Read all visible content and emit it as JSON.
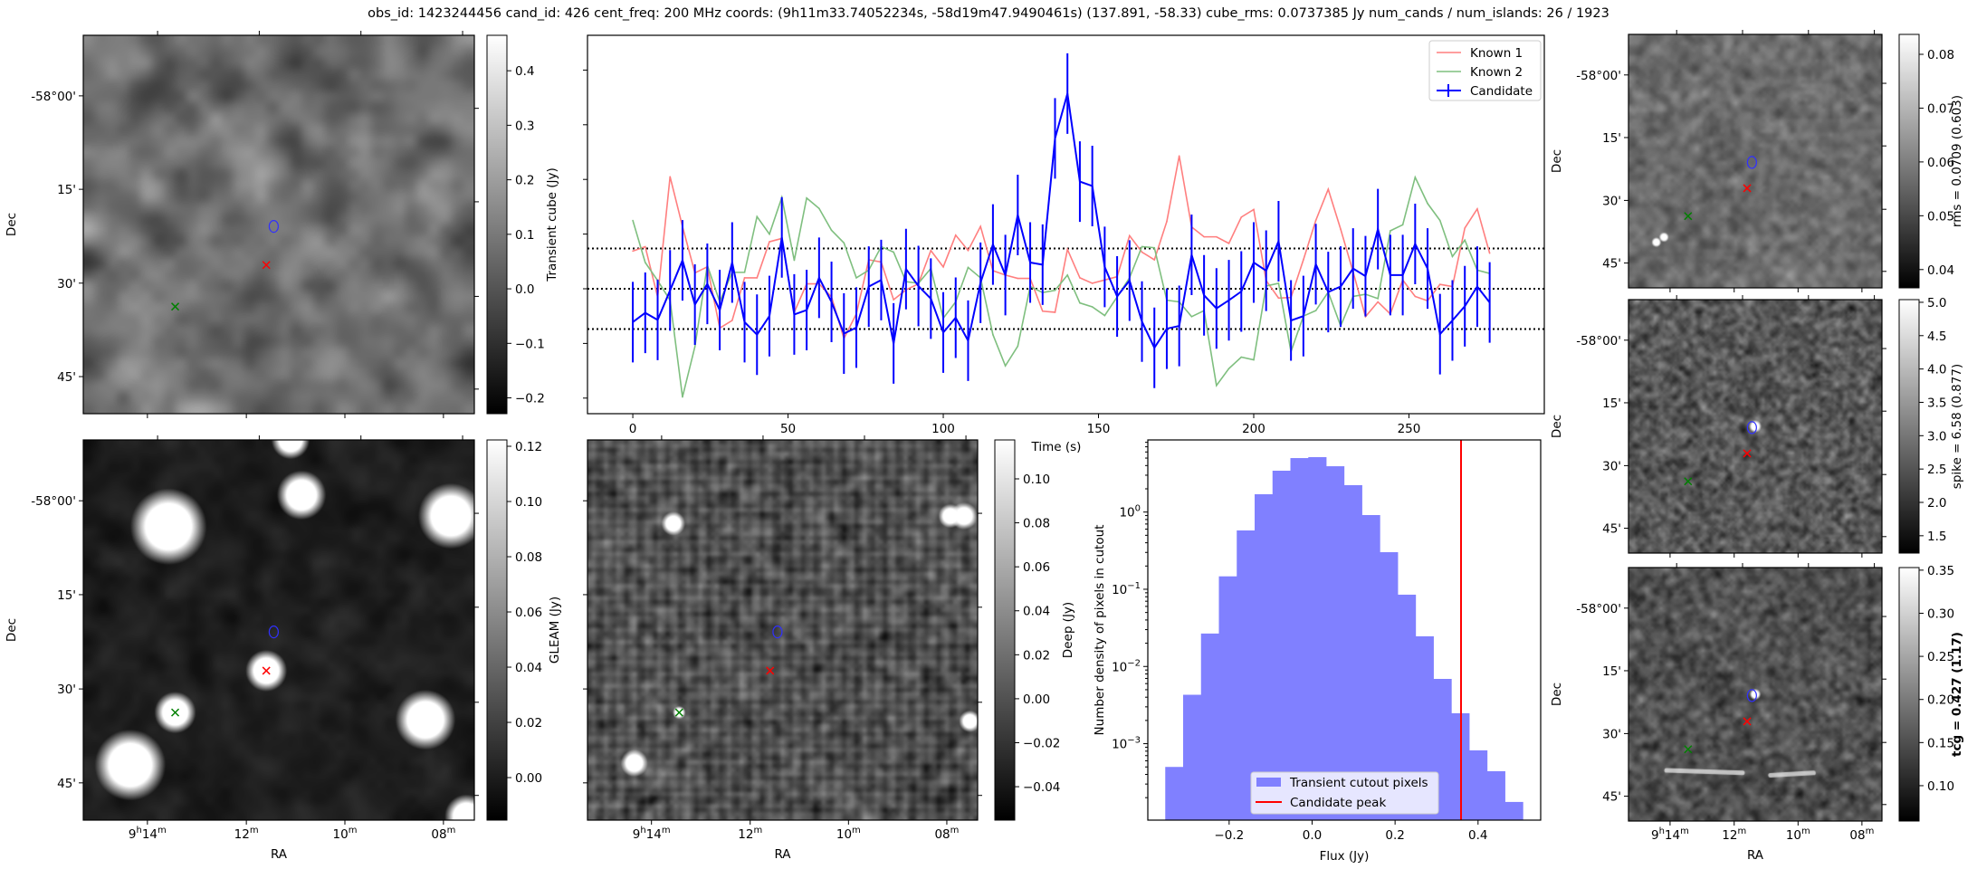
{
  "title": "obs_id: 1423244456 cand_id: 426 cent_freq: 200 MHz coords: (9h11m33.74052234s, -58d19m47.9490461s) (137.891, -58.33) cube_rms: 0.0737385 Jy num_cands / num_islands: 26 / 1923",
  "axis_labels": {
    "ra": "RA",
    "dec": "Dec"
  },
  "ra_ticks": [
    "9h14m",
    "12m",
    "10m",
    "08m"
  ],
  "dec_ticks": [
    "-58°00'",
    "15'",
    "30'",
    "45'"
  ],
  "colors": {
    "known1": "#ff7f7f",
    "known2": "#7fbf7f",
    "candidate": "#0000ff",
    "hist_fill": "#8080ff",
    "peak_line": "#ff0000",
    "contour": "#3030ff",
    "marker_candidate": "#ff0000",
    "marker_known": "#008000"
  },
  "panels": [
    {
      "id": "transient",
      "colorbar": {
        "label": "Transient cube (Jy)",
        "bold": false,
        "range": [
          -0.229,
          0.465
        ],
        "ticks": [
          "0.4",
          "0.3",
          "0.2",
          "0.1",
          "0.0",
          "−0.1",
          "−0.2"
        ]
      }
    },
    {
      "id": "gleam",
      "colorbar": {
        "label": "GLEAM (Jy)",
        "bold": false,
        "range": [
          -0.0154,
          0.1223
        ],
        "ticks": [
          "0.12",
          "0.10",
          "0.08",
          "0.06",
          "0.04",
          "0.02",
          "0.00"
        ]
      }
    },
    {
      "id": "deep",
      "colorbar": {
        "label": "Deep (Jy)",
        "bold": false,
        "range": [
          -0.0552,
          0.1177
        ],
        "ticks": [
          "0.10",
          "0.08",
          "0.06",
          "0.04",
          "0.02",
          "0.00",
          "−0.02",
          "−0.04"
        ]
      }
    },
    {
      "id": "rms",
      "colorbar": {
        "label": "rms = 0.0709 (0.603)",
        "bold": false,
        "range": [
          0.0366,
          0.0837
        ],
        "ticks": [
          "0.08",
          "0.07",
          "0.06",
          "0.05",
          "0.04"
        ]
      }
    },
    {
      "id": "spike",
      "colorbar": {
        "label": "spike = 6.58 (0.877)",
        "bold": false,
        "range": [
          1.24,
          5.04
        ],
        "ticks": [
          "5.0",
          "4.5",
          "4.0",
          "3.5",
          "3.0",
          "2.5",
          "2.0",
          "1.5"
        ]
      }
    },
    {
      "id": "tcg",
      "colorbar": {
        "label": "tcg = 0.427 (1.17)",
        "bold": true,
        "range": [
          0.059,
          0.353
        ],
        "ticks": [
          "0.35",
          "0.30",
          "0.25",
          "0.20",
          "0.15",
          "0.10"
        ]
      }
    }
  ],
  "chart_data": [
    {
      "type": "line",
      "title": "",
      "xlabel": "Time (s)",
      "ylabel": "",
      "xlim": [
        -14.6,
        293.6
      ],
      "ylim": [
        -0.2285,
        0.4636
      ],
      "xticks": [
        "0",
        "50",
        "100",
        "150",
        "200",
        "250"
      ],
      "yticks": [
        0.4,
        0.3,
        0.2,
        0.1,
        0.0,
        -0.1,
        -0.2
      ],
      "hlines": [
        0.0737385,
        0.0,
        -0.0737385
      ],
      "legend": "top-right",
      "x": [
        0,
        4,
        8,
        12,
        16,
        20,
        24,
        28,
        32,
        36,
        40,
        44,
        48,
        52,
        56,
        60,
        64,
        68,
        72,
        76,
        80,
        84,
        88,
        92,
        96,
        100,
        104,
        108,
        112,
        116,
        120,
        124,
        128,
        132,
        136,
        140,
        144,
        148,
        152,
        156,
        160,
        164,
        168,
        172,
        176,
        180,
        184,
        188,
        192,
        196,
        200,
        204,
        208,
        212,
        216,
        220,
        224,
        228,
        232,
        236,
        240,
        244,
        248,
        252,
        256,
        260,
        264,
        268,
        272,
        276
      ],
      "series": [
        {
          "name": "Known 1",
          "color_key": "known1",
          "values": [
            0.069,
            0.077,
            -0.015,
            0.205,
            0.114,
            0.029,
            0.04,
            -0.072,
            -0.058,
            0.02,
            0.02,
            0.086,
            0.092,
            -0.043,
            0.009,
            0.009,
            -0.015,
            -0.091,
            -0.046,
            0.053,
            0.049,
            -0.02,
            -0.002,
            0.009,
            0.07,
            0.04,
            0.098,
            0.07,
            0.114,
            0.033,
            0.025,
            0.019,
            0.019,
            -0.041,
            -0.043,
            0.072,
            0.02,
            0.01,
            0.016,
            0.022,
            0.097,
            0.067,
            0.053,
            0.123,
            0.243,
            0.113,
            0.095,
            0.095,
            0.083,
            0.131,
            0.145,
            0.015,
            -0.017,
            -0.016,
            0.053,
            0.125,
            0.182,
            0.109,
            0.031,
            -0.051,
            -0.024,
            -0.046,
            0.016,
            -0.014,
            -0.022,
            0.008,
            0.004,
            0.111,
            0.146,
            0.065
          ]
        },
        {
          "name": "Known 2",
          "color_key": "known2",
          "values": [
            0.125,
            0.048,
            0.015,
            -0.021,
            -0.198,
            -0.106,
            0.043,
            -0.024,
            0.03,
            0.03,
            0.132,
            0.1,
            0.167,
            0.052,
            0.166,
            0.147,
            0.107,
            0.084,
            0.02,
            0.034,
            0.077,
            0.067,
            0.013,
            0.01,
            0.037,
            -0.054,
            -0.024,
            0.039,
            0.02,
            -0.084,
            -0.141,
            -0.105,
            0.004,
            -0.007,
            -0.003,
            0.025,
            -0.026,
            -0.033,
            -0.049,
            -0.015,
            0.02,
            0.077,
            0.075,
            -0.021,
            -0.024,
            -0.051,
            -0.04,
            -0.177,
            -0.146,
            -0.125,
            -0.13,
            0.005,
            0.01,
            -0.115,
            -0.05,
            -0.04,
            -0.006,
            -0.068,
            -0.014,
            -0.01,
            -0.018,
            0.106,
            0.117,
            0.204,
            0.156,
            0.125,
            0.059,
            0.089,
            0.034,
            0.028
          ]
        },
        {
          "name": "Candidate",
          "color_key": "candidate",
          "yerr": 0.0737,
          "values": [
            -0.061,
            -0.044,
            -0.057,
            -0.003,
            0.052,
            -0.029,
            0.009,
            -0.039,
            0.048,
            -0.061,
            -0.084,
            -0.05,
            0.094,
            -0.047,
            -0.039,
            0.02,
            -0.024,
            -0.082,
            -0.071,
            0.004,
            0.016,
            -0.1,
            0.036,
            0.005,
            -0.018,
            -0.08,
            -0.053,
            -0.095,
            0.011,
            0.081,
            0.025,
            0.135,
            0.048,
            0.044,
            0.275,
            0.357,
            0.196,
            0.188,
            0.04,
            -0.014,
            0.015,
            -0.06,
            -0.108,
            -0.073,
            -0.068,
            0.062,
            -0.012,
            -0.036,
            -0.021,
            -0.005,
            0.048,
            0.033,
            0.087,
            -0.058,
            -0.05,
            0.045,
            -0.006,
            0.004,
            0.037,
            0.023,
            0.109,
            0.025,
            0.025,
            0.082,
            0.037,
            -0.083,
            -0.058,
            -0.032,
            0.004,
            -0.025
          ]
        }
      ]
    },
    {
      "type": "bar",
      "title": "",
      "xlabel": "Flux (Jy)",
      "ylabel": "Number density of pixels in cutout",
      "yscale": "log",
      "xlim": [
        -0.396,
        0.551
      ],
      "ylim_log10": [
        -3.99,
        0.934
      ],
      "xticks": [
        "−0.2",
        "0.0",
        "0.2",
        "0.4"
      ],
      "yticks": [
        "10^0",
        "10^-1",
        "10^-2",
        "10^-3"
      ],
      "legend": "lower-center",
      "bin_edges": [
        -0.354,
        -0.3109,
        -0.2678,
        -0.2247,
        -0.1816,
        -0.1385,
        -0.0954,
        -0.0523,
        -0.0092,
        0.0339,
        0.077,
        0.1201,
        0.1632,
        0.2063,
        0.2494,
        0.2925,
        0.3356,
        0.3787,
        0.4218,
        0.4649,
        0.508
      ],
      "density": [
        0.0005,
        0.0043,
        0.0267,
        0.147,
        0.578,
        1.7,
        3.43,
        5.0,
        5.14,
        3.92,
        2.23,
        0.914,
        0.302,
        0.0851,
        0.0246,
        0.0069,
        0.00248,
        0.00082,
        0.00044,
        0.000176
      ],
      "series_name": "Transient cutout pixels",
      "vline": {
        "name": "Candidate peak",
        "x": 0.359
      }
    }
  ]
}
